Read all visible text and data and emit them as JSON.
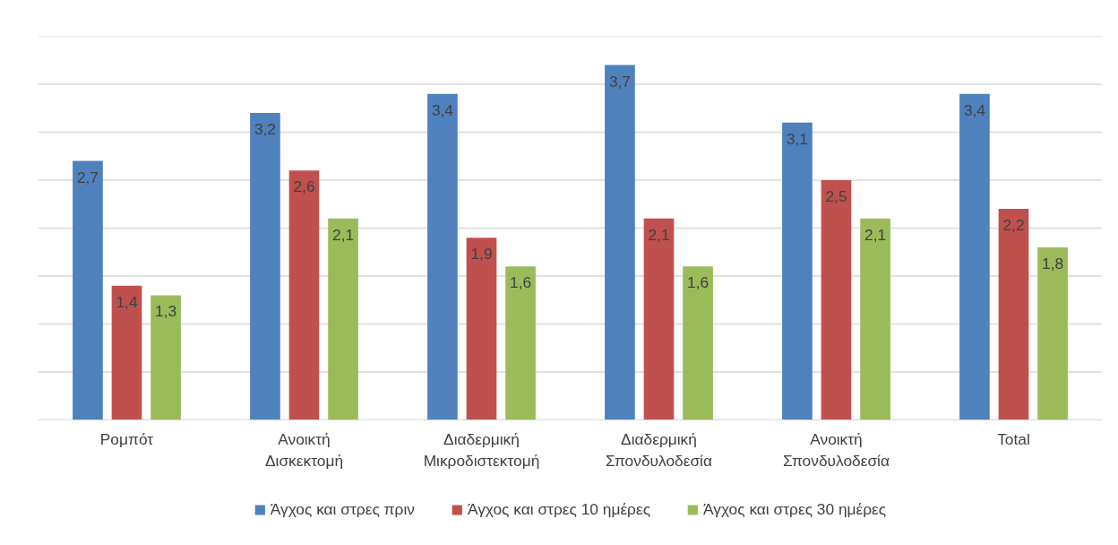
{
  "chart_data": {
    "type": "bar",
    "categories": [
      "Ρομπότ",
      "Ανοικτή Δισκεκτομή",
      "Διαδερμική Μικροδιστεκτομή",
      "Διαδερμική Σπονδυλοδεσία",
      "Ανοικτή Σπονδυλοδεσία",
      "Total"
    ],
    "series": [
      {
        "name": "Άγχος και στρες πριν",
        "color": "#4f81bd",
        "values": [
          2.7,
          3.2,
          3.4,
          3.7,
          3.1,
          3.4
        ],
        "value_labels": [
          "2,7",
          "3,2",
          "3,4",
          "3,7",
          "3,1",
          "3,4"
        ]
      },
      {
        "name": "Άγχος και στρες 10 ημέρες",
        "color": "#c0504d",
        "values": [
          1.4,
          2.6,
          1.9,
          2.1,
          2.5,
          2.2
        ],
        "value_labels": [
          "1,4",
          "2,6",
          "1,9",
          "2,1",
          "2,5",
          "2,2"
        ]
      },
      {
        "name": "Άγχος και στρες 30 ημέρες",
        "color": "#9bbb59",
        "values": [
          1.3,
          2.1,
          1.6,
          1.6,
          2.1,
          1.8
        ],
        "value_labels": [
          "1,3",
          "2,1",
          "1,6",
          "1,6",
          "2,1",
          "1,8"
        ]
      }
    ],
    "ylim": [
      0,
      4
    ],
    "yticks": [
      {
        "value": 0,
        "label": null
      },
      {
        "value": 0.5,
        "label": null
      },
      {
        "value": 1,
        "label": null
      },
      {
        "value": 1.5,
        "label": null
      },
      {
        "value": 2,
        "label": null
      },
      {
        "value": 2.5,
        "label": null
      },
      {
        "value": 3,
        "label": null
      },
      {
        "value": 3.5,
        "label": null
      },
      {
        "value": 4,
        "label": null
      }
    ],
    "tick_labels": "x",
    "grid": "y",
    "legend": "bottom"
  }
}
